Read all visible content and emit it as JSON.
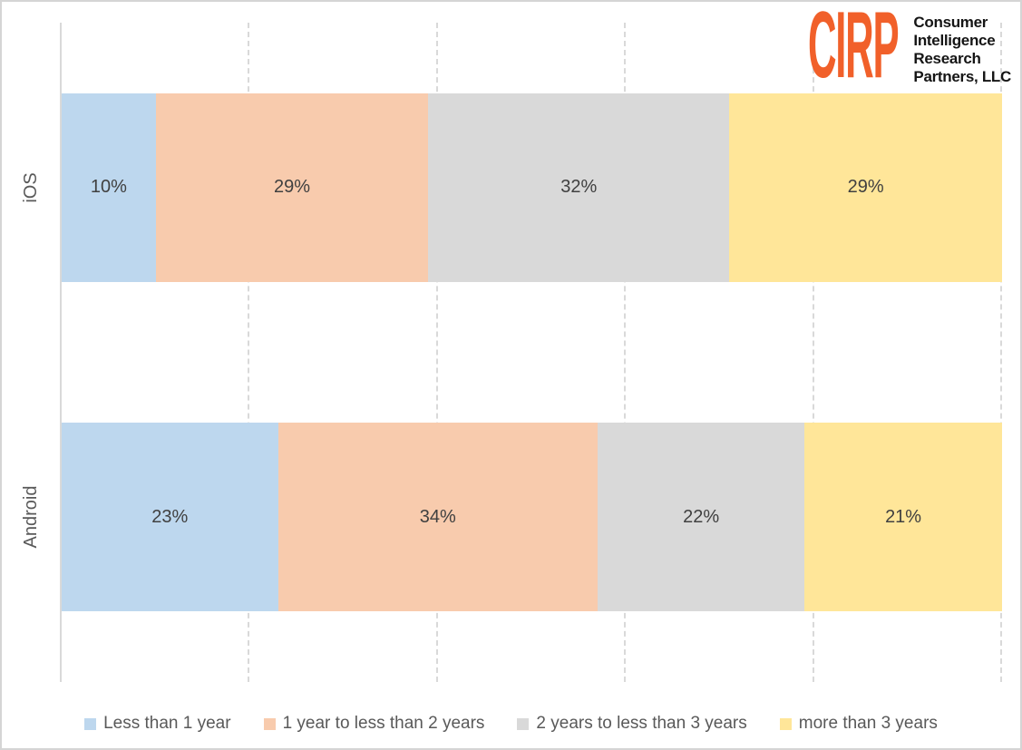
{
  "logo": {
    "acronym": "CIRP",
    "name_lines": [
      "Consumer",
      "Intelligence",
      "Research",
      "Partners, LLC"
    ],
    "accent_color": "#F1602A"
  },
  "chart_data": {
    "type": "bar",
    "orientation": "horizontal",
    "stacked": true,
    "categories": [
      "iOS",
      "Android"
    ],
    "series": [
      {
        "name": "Less than 1 year",
        "color": "#BDD7EE",
        "values": [
          10,
          23
        ]
      },
      {
        "name": "1 year to less than 2 years",
        "color": "#F8CBAD",
        "values": [
          29,
          34
        ]
      },
      {
        "name": "2 years to less than 3 years",
        "color": "#D9D9D9",
        "values": [
          32,
          22
        ]
      },
      {
        "name": "more than 3 years",
        "color": "#FFE699",
        "values": [
          29,
          21
        ]
      }
    ],
    "value_suffix": "%",
    "xlim": [
      0,
      100
    ],
    "gridlines_percent": [
      20,
      40,
      60,
      80,
      100
    ],
    "grid_style": "dashed",
    "grid_color": "#D9D9D9",
    "legend_position": "bottom",
    "label_color": "#404040",
    "axis_text_color": "#595959"
  }
}
